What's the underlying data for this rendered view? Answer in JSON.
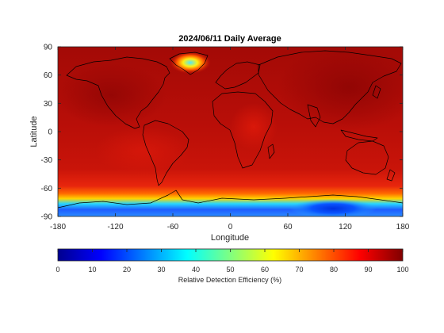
{
  "map": {
    "title": "2024/06/11 Daily Average",
    "xlabel": "Longitude",
    "ylabel": "Latitude",
    "xlim": [
      -180,
      180
    ],
    "ylim": [
      -90,
      90
    ],
    "xticks": [
      "-180",
      "-120",
      "-60",
      "0",
      "60",
      "120",
      "180"
    ],
    "yticks": [
      "90",
      "60",
      "30",
      "0",
      "-30",
      "-60",
      "-90"
    ]
  },
  "colorbar": {
    "label": "Relative Detection Efficiency (%)",
    "range": [
      0,
      100
    ],
    "ticks": [
      "0",
      "10",
      "20",
      "30",
      "40",
      "50",
      "60",
      "70",
      "80",
      "90",
      "100"
    ],
    "colors": [
      "#00008f",
      "#0000ff",
      "#0080ff",
      "#00ffff",
      "#80ff80",
      "#ffff00",
      "#ff8000",
      "#ff0000",
      "#800000"
    ]
  }
}
